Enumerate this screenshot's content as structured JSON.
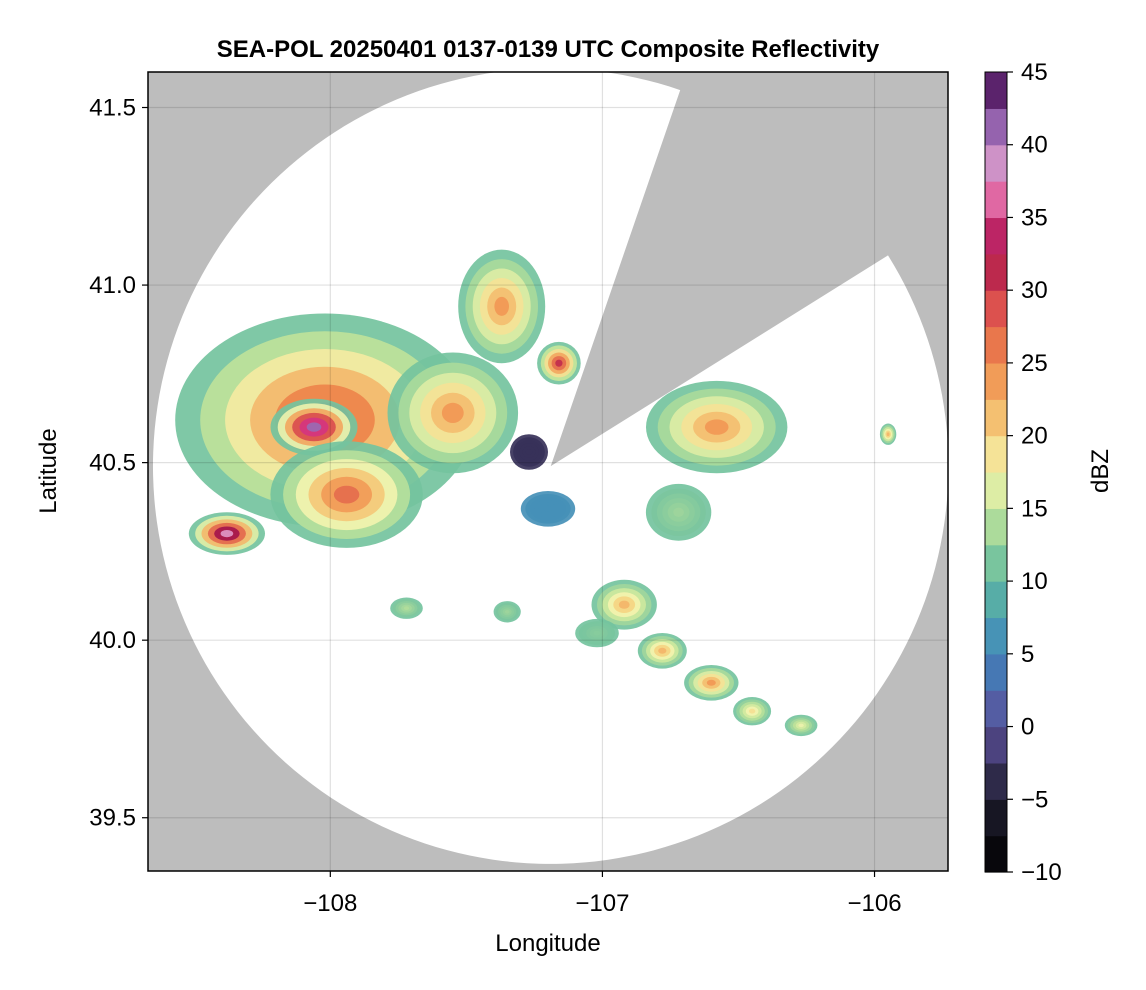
{
  "chart_data": {
    "type": "heatmap",
    "title": "SEA-POL 20250401 0137-0139 UTC Composite Reflectivity",
    "xlabel": "Longitude",
    "ylabel": "Latitude",
    "xlim": [
      -108.67,
      -105.73
    ],
    "ylim": [
      39.35,
      41.6
    ],
    "xticks": [
      -108,
      -107,
      -106
    ],
    "xtick_labels": [
      "−108",
      "−107",
      "−106"
    ],
    "yticks": [
      39.5,
      40.0,
      40.5,
      41.0,
      41.5
    ],
    "ytick_labels": [
      "39.5",
      "40.0",
      "40.5",
      "41.0",
      "41.5"
    ],
    "grid": true,
    "background_color": "#bdbdbd",
    "radar": {
      "center_lon": -107.19,
      "center_lat": 40.49,
      "range_deg_lat": 1.12,
      "blocked_sector_bearing_deg": [
        19,
        58
      ]
    },
    "colorbar": {
      "label": "dBZ",
      "min": -10,
      "max": 45,
      "step": 2.5,
      "ticks": [
        -10,
        -5,
        0,
        5,
        10,
        15,
        20,
        25,
        30,
        35,
        40,
        45
      ],
      "tick_labels": [
        "−10",
        "−5",
        "0",
        "5",
        "10",
        "15",
        "20",
        "25",
        "30",
        "35",
        "40",
        "45"
      ],
      "colormap_stops": [
        {
          "v": -10,
          "c": "#000000"
        },
        {
          "v": -5,
          "c": "#1f1d2e"
        },
        {
          "v": 0,
          "c": "#5b4f9a"
        },
        {
          "v": 5,
          "c": "#3f86bd"
        },
        {
          "v": 10,
          "c": "#5fba9f"
        },
        {
          "v": 15,
          "c": "#c6e69a"
        },
        {
          "v": 17.5,
          "c": "#f4f4b0"
        },
        {
          "v": 20,
          "c": "#f5d27e"
        },
        {
          "v": 25,
          "c": "#f08a4b"
        },
        {
          "v": 30,
          "c": "#d53e4f"
        },
        {
          "v": 32.5,
          "c": "#a3144a"
        },
        {
          "v": 35,
          "c": "#d4357f"
        },
        {
          "v": 37.5,
          "c": "#ec9ac6"
        },
        {
          "v": 40,
          "c": "#b08ac8"
        },
        {
          "v": 42.5,
          "c": "#7a3b93"
        },
        {
          "v": 45,
          "c": "#3b0a45"
        }
      ]
    },
    "echoes": [
      {
        "region": "west main cell",
        "lon": -108.02,
        "lat": 40.62,
        "rx_deg": 0.55,
        "ry_deg": 0.3,
        "peak_dbz": 29
      },
      {
        "region": "west core",
        "lon": -108.06,
        "lat": 40.6,
        "rx_deg": 0.16,
        "ry_deg": 0.08,
        "peak_dbz": 41
      },
      {
        "region": "west south lobe",
        "lon": -107.94,
        "lat": 40.41,
        "rx_deg": 0.28,
        "ry_deg": 0.15,
        "peak_dbz": 27
      },
      {
        "region": "west east lobe",
        "lon": -107.55,
        "lat": 40.64,
        "rx_deg": 0.24,
        "ry_deg": 0.17,
        "peak_dbz": 24
      },
      {
        "region": "southwest small cell",
        "lon": -108.38,
        "lat": 40.3,
        "rx_deg": 0.14,
        "ry_deg": 0.06,
        "peak_dbz": 38
      },
      {
        "region": "north cell",
        "lon": -107.37,
        "lat": 40.94,
        "rx_deg": 0.16,
        "ry_deg": 0.16,
        "peak_dbz": 24
      },
      {
        "region": "north cell core",
        "lon": -107.16,
        "lat": 40.78,
        "rx_deg": 0.08,
        "ry_deg": 0.06,
        "peak_dbz": 31
      },
      {
        "region": "near radar weak echo",
        "lon": -107.27,
        "lat": 40.53,
        "rx_deg": 0.07,
        "ry_deg": 0.05,
        "peak_dbz": -3
      },
      {
        "region": "northeast cell",
        "lon": -106.58,
        "lat": 40.6,
        "rx_deg": 0.26,
        "ry_deg": 0.13,
        "peak_dbz": 24
      },
      {
        "region": "east cell",
        "lon": -106.72,
        "lat": 40.36,
        "rx_deg": 0.12,
        "ry_deg": 0.08,
        "peak_dbz": 13
      },
      {
        "region": "south-central cell",
        "lon": -106.92,
        "lat": 40.1,
        "rx_deg": 0.12,
        "ry_deg": 0.07,
        "peak_dbz": 22
      },
      {
        "region": "south band 1",
        "lon": -106.78,
        "lat": 39.97,
        "rx_deg": 0.09,
        "ry_deg": 0.05,
        "peak_dbz": 22
      },
      {
        "region": "south band 2",
        "lon": -106.6,
        "lat": 39.88,
        "rx_deg": 0.1,
        "ry_deg": 0.05,
        "peak_dbz": 24
      },
      {
        "region": "south band 3",
        "lon": -106.45,
        "lat": 39.8,
        "rx_deg": 0.07,
        "ry_deg": 0.04,
        "peak_dbz": 19
      },
      {
        "region": "south band 4",
        "lon": -106.27,
        "lat": 39.76,
        "rx_deg": 0.06,
        "ry_deg": 0.03,
        "peak_dbz": 17
      },
      {
        "region": "south small 1",
        "lon": -107.2,
        "lat": 40.37,
        "rx_deg": 0.1,
        "ry_deg": 0.05,
        "peak_dbz": 6
      },
      {
        "region": "south small 2",
        "lon": -107.02,
        "lat": 40.02,
        "rx_deg": 0.08,
        "ry_deg": 0.04,
        "peak_dbz": 12
      },
      {
        "region": "southwest small 2",
        "lon": -107.35,
        "lat": 40.08,
        "rx_deg": 0.05,
        "ry_deg": 0.03,
        "peak_dbz": 13
      },
      {
        "region": "west small 3",
        "lon": -107.72,
        "lat": 40.09,
        "rx_deg": 0.06,
        "ry_deg": 0.03,
        "peak_dbz": 14
      },
      {
        "region": "far east echo",
        "lon": -105.95,
        "lat": 40.58,
        "rx_deg": 0.03,
        "ry_deg": 0.03,
        "peak_dbz": 22
      }
    ]
  }
}
